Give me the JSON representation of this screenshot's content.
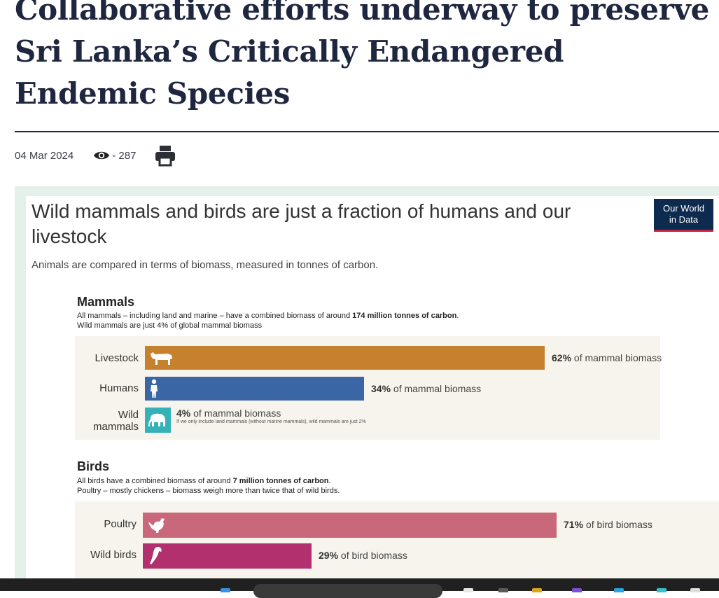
{
  "article": {
    "title": "Collaborative efforts underway to preserve Sri Lanka’s Critically Endangered Endemic Species",
    "date": "04 Mar 2024",
    "views": "- 287"
  },
  "infographic": {
    "title": "Wild mammals and birds are just a fraction of humans and our livestock",
    "subtitle": "Animals are compared in terms of biomass, measured in tonnes of carbon.",
    "logo_line1": "Our World",
    "logo_line2": "in Data",
    "colors": {
      "livestock": "#c6812f",
      "humans": "#3b66a6",
      "wild_mammals": "#34b2b8",
      "poultry": "#c9687a",
      "wild_birds": "#b3306f"
    },
    "mammals": {
      "title": "Mammals",
      "desc1_pre": "All mammals – including land and marine – have a combined biomass of around ",
      "desc1_bold": "174 million tonnes of carbon",
      "desc1_post": ".",
      "desc2": "Wild mammals are just 4% of global mammal biomass",
      "rows": [
        {
          "label": "Livestock",
          "pct": "62%",
          "suffix": " of mammal biomass",
          "value": 62,
          "icon": "cow-icon"
        },
        {
          "label": "Humans",
          "pct": "34%",
          "suffix": " of mammal biomass",
          "value": 34,
          "icon": "person-icon"
        },
        {
          "label_line1": "Wild",
          "label_line2": "mammals",
          "pct": "4%",
          "suffix": " of mammal biomass",
          "value": 4,
          "icon": "elephant-icon",
          "note": "If we only include land mammals (without marine mammals), wild mammals are just 2%"
        }
      ]
    },
    "birds": {
      "title": "Birds",
      "desc1_pre": "All birds have a combined biomass of around ",
      "desc1_bold": "7 million tonnes of carbon",
      "desc1_post": ".",
      "desc2": "Poultry – mostly chickens – biomass weigh more than twice that of wild birds.",
      "rows": [
        {
          "label": "Poultry",
          "pct": "71%",
          "suffix": " of bird biomass",
          "value": 71,
          "icon": "chicken-icon"
        },
        {
          "label": "Wild birds",
          "pct": "29%",
          "suffix": " of bird biomass",
          "value": 29,
          "icon": "parrot-icon"
        }
      ]
    }
  }
}
